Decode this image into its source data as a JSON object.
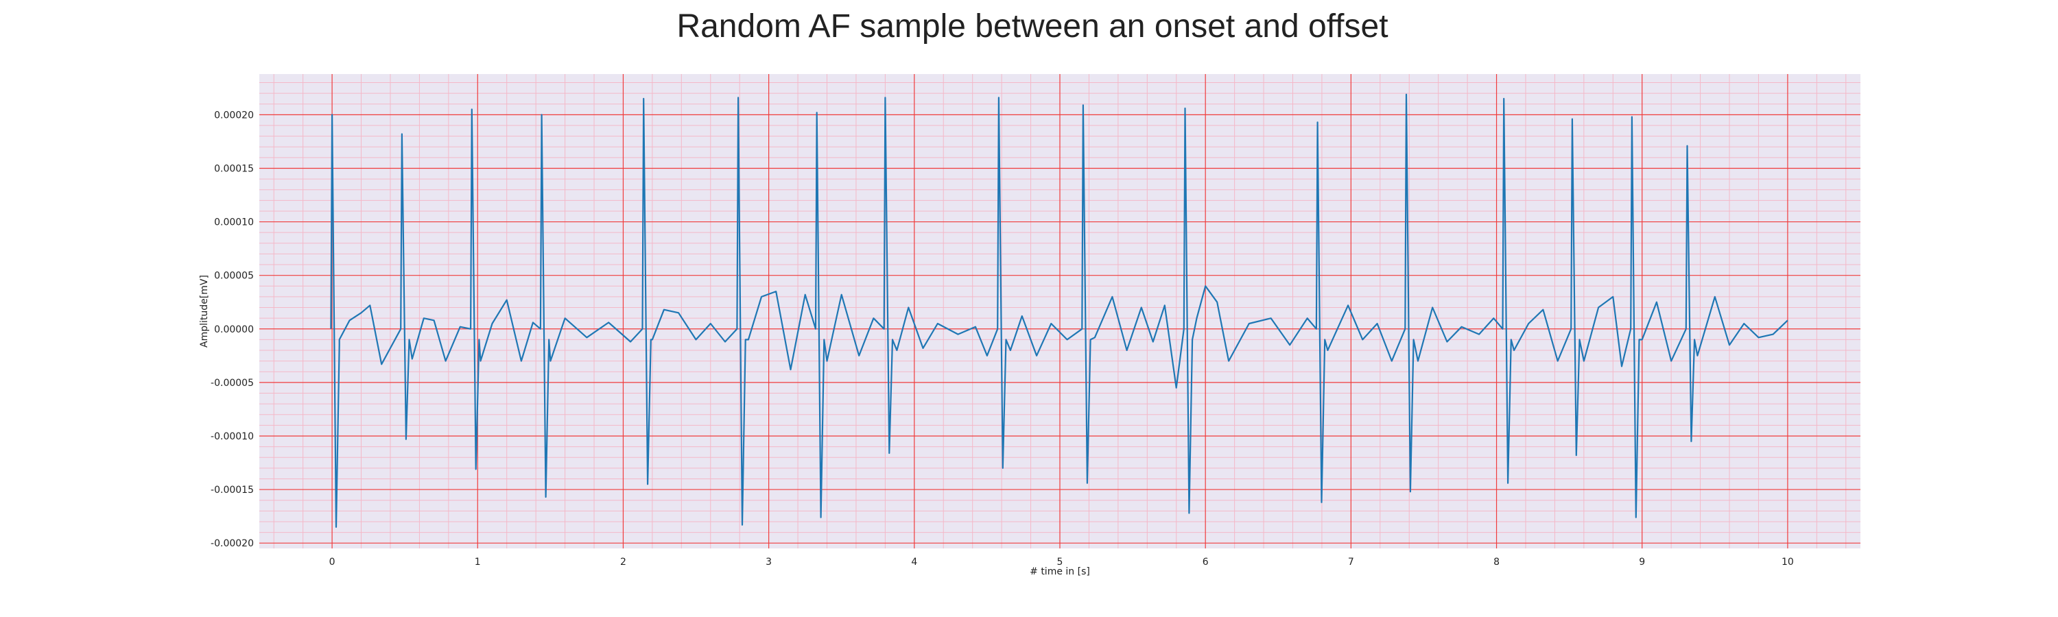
{
  "chart_data": {
    "type": "line",
    "title": "Random AF sample between an onset and offset",
    "xlabel": "# time in [s]",
    "ylabel": "Amplitude[mV]",
    "xlim": [
      -0.5,
      10.5
    ],
    "ylim": [
      -0.000205,
      0.000238
    ],
    "xticks": [
      0,
      1,
      2,
      3,
      4,
      5,
      6,
      7,
      8,
      9,
      10
    ],
    "xtick_labels": [
      "0",
      "1",
      "2",
      "3",
      "4",
      "5",
      "6",
      "7",
      "8",
      "9",
      "10"
    ],
    "yticks": [
      -0.0002,
      -0.00015,
      -0.0001,
      -5e-05,
      0.0,
      5e-05,
      0.0001,
      0.00015,
      0.0002
    ],
    "ytick_labels": [
      "-0.00020",
      "-0.00015",
      "-0.00010",
      "-0.00005",
      "0.00000",
      "0.00005",
      "0.00010",
      "0.00015",
      "0.00020"
    ],
    "grid": true,
    "grid_major_color": "#f03c3c",
    "grid_minor_color": "#f4b8c8",
    "plot_background": "#eae6f2",
    "line_color": "#1f77b4",
    "beats": [
      {
        "t": 0.0,
        "peak": 0.0002,
        "trough": -0.000185
      },
      {
        "t": 0.48,
        "peak": 0.000182,
        "trough": -0.000103
      },
      {
        "t": 0.96,
        "peak": 0.000205,
        "trough": -0.000131
      },
      {
        "t": 1.44,
        "peak": 0.0002,
        "trough": -0.000157
      },
      {
        "t": 2.14,
        "peak": 0.000215,
        "trough": -0.000145
      },
      {
        "t": 2.79,
        "peak": 0.000216,
        "trough": -0.000183
      },
      {
        "t": 3.33,
        "peak": 0.000202,
        "trough": -0.000176
      },
      {
        "t": 3.8,
        "peak": 0.000216,
        "trough": -0.000116
      },
      {
        "t": 4.58,
        "peak": 0.000216,
        "trough": -0.00013
      },
      {
        "t": 5.16,
        "peak": 0.000209,
        "trough": -0.000144
      },
      {
        "t": 5.86,
        "peak": 0.000206,
        "trough": -0.000172
      },
      {
        "t": 6.77,
        "peak": 0.000193,
        "trough": -0.000162
      },
      {
        "t": 7.38,
        "peak": 0.000219,
        "trough": -0.000152
      },
      {
        "t": 8.05,
        "peak": 0.000215,
        "trough": -0.000144
      },
      {
        "t": 8.52,
        "peak": 0.000196,
        "trough": -0.000118
      },
      {
        "t": 8.93,
        "peak": 0.000198,
        "trough": -0.000176
      },
      {
        "t": 9.31,
        "peak": 0.000171,
        "trough": -0.000105
      }
    ],
    "baseline_samples": [
      {
        "x": 0.05,
        "y": -1.5e-05
      },
      {
        "x": 0.12,
        "y": 8e-06
      },
      {
        "x": 0.2,
        "y": 1.5e-05
      },
      {
        "x": 0.26,
        "y": 2.2e-05
      },
      {
        "x": 0.34,
        "y": -3.3e-05
      },
      {
        "x": 0.55,
        "y": -2.8e-05
      },
      {
        "x": 0.63,
        "y": 1e-05
      },
      {
        "x": 0.7,
        "y": 8e-06
      },
      {
        "x": 0.78,
        "y": -3e-05
      },
      {
        "x": 0.88,
        "y": 2e-06
      },
      {
        "x": 1.02,
        "y": -3e-05
      },
      {
        "x": 1.1,
        "y": 5e-06
      },
      {
        "x": 1.2,
        "y": 2.7e-05
      },
      {
        "x": 1.3,
        "y": -3e-05
      },
      {
        "x": 1.38,
        "y": 6e-06
      },
      {
        "x": 1.5,
        "y": -3e-05
      },
      {
        "x": 1.6,
        "y": 1e-05
      },
      {
        "x": 1.75,
        "y": -8e-06
      },
      {
        "x": 1.9,
        "y": 6e-06
      },
      {
        "x": 2.05,
        "y": -1.2e-05
      },
      {
        "x": 2.2,
        "y": -1e-05
      },
      {
        "x": 2.28,
        "y": 1.8e-05
      },
      {
        "x": 2.38,
        "y": 1.5e-05
      },
      {
        "x": 2.5,
        "y": -1e-05
      },
      {
        "x": 2.6,
        "y": 5e-06
      },
      {
        "x": 2.7,
        "y": -1.2e-05
      },
      {
        "x": 2.86,
        "y": -1e-05
      },
      {
        "x": 2.95,
        "y": 3e-05
      },
      {
        "x": 3.05,
        "y": 3.5e-05
      },
      {
        "x": 3.15,
        "y": -3.8e-05
      },
      {
        "x": 3.25,
        "y": 3.2e-05
      },
      {
        "x": 3.4,
        "y": -3e-05
      },
      {
        "x": 3.5,
        "y": 3.2e-05
      },
      {
        "x": 3.62,
        "y": -2.5e-05
      },
      {
        "x": 3.72,
        "y": 1e-05
      },
      {
        "x": 3.88,
        "y": -2e-05
      },
      {
        "x": 3.96,
        "y": 2e-05
      },
      {
        "x": 4.06,
        "y": -1.8e-05
      },
      {
        "x": 4.16,
        "y": 5e-06
      },
      {
        "x": 4.3,
        "y": -5e-06
      },
      {
        "x": 4.42,
        "y": 2e-06
      },
      {
        "x": 4.5,
        "y": -2.5e-05
      },
      {
        "x": 4.66,
        "y": -2e-05
      },
      {
        "x": 4.74,
        "y": 1.2e-05
      },
      {
        "x": 4.84,
        "y": -2.5e-05
      },
      {
        "x": 4.94,
        "y": 5e-06
      },
      {
        "x": 5.05,
        "y": -1e-05
      },
      {
        "x": 5.24,
        "y": -8e-06
      },
      {
        "x": 5.36,
        "y": 3e-05
      },
      {
        "x": 5.46,
        "y": -2e-05
      },
      {
        "x": 5.56,
        "y": 2e-05
      },
      {
        "x": 5.64,
        "y": -1.2e-05
      },
      {
        "x": 5.72,
        "y": 2.2e-05
      },
      {
        "x": 5.8,
        "y": -5.5e-05
      },
      {
        "x": 5.94,
        "y": 1e-05
      },
      {
        "x": 6.0,
        "y": 4e-05
      },
      {
        "x": 6.08,
        "y": 2.5e-05
      },
      {
        "x": 6.16,
        "y": -3e-05
      },
      {
        "x": 6.3,
        "y": 5e-06
      },
      {
        "x": 6.45,
        "y": 1e-05
      },
      {
        "x": 6.58,
        "y": -1.5e-05
      },
      {
        "x": 6.7,
        "y": 1e-05
      },
      {
        "x": 6.84,
        "y": -2e-05
      },
      {
        "x": 6.98,
        "y": 2.2e-05
      },
      {
        "x": 7.08,
        "y": -1e-05
      },
      {
        "x": 7.18,
        "y": 5e-06
      },
      {
        "x": 7.28,
        "y": -3e-05
      },
      {
        "x": 7.46,
        "y": -3e-05
      },
      {
        "x": 7.56,
        "y": 2e-05
      },
      {
        "x": 7.66,
        "y": -1.2e-05
      },
      {
        "x": 7.76,
        "y": 2e-06
      },
      {
        "x": 7.88,
        "y": -5e-06
      },
      {
        "x": 7.98,
        "y": 1e-05
      },
      {
        "x": 8.12,
        "y": -2e-05
      },
      {
        "x": 8.22,
        "y": 5e-06
      },
      {
        "x": 8.32,
        "y": 1.8e-05
      },
      {
        "x": 8.42,
        "y": -3e-05
      },
      {
        "x": 8.6,
        "y": -3e-05
      },
      {
        "x": 8.7,
        "y": 2e-05
      },
      {
        "x": 8.8,
        "y": 3e-05
      },
      {
        "x": 8.86,
        "y": -3.5e-05
      },
      {
        "x": 9.0,
        "y": -1e-05
      },
      {
        "x": 9.1,
        "y": 2.5e-05
      },
      {
        "x": 9.2,
        "y": -3e-05
      },
      {
        "x": 9.38,
        "y": -2.5e-05
      },
      {
        "x": 9.5,
        "y": 3e-05
      },
      {
        "x": 9.6,
        "y": -1.5e-05
      },
      {
        "x": 9.7,
        "y": 5e-06
      },
      {
        "x": 9.8,
        "y": -8e-06
      },
      {
        "x": 9.9,
        "y": -5e-06
      },
      {
        "x": 10.0,
        "y": 8e-06
      }
    ]
  }
}
